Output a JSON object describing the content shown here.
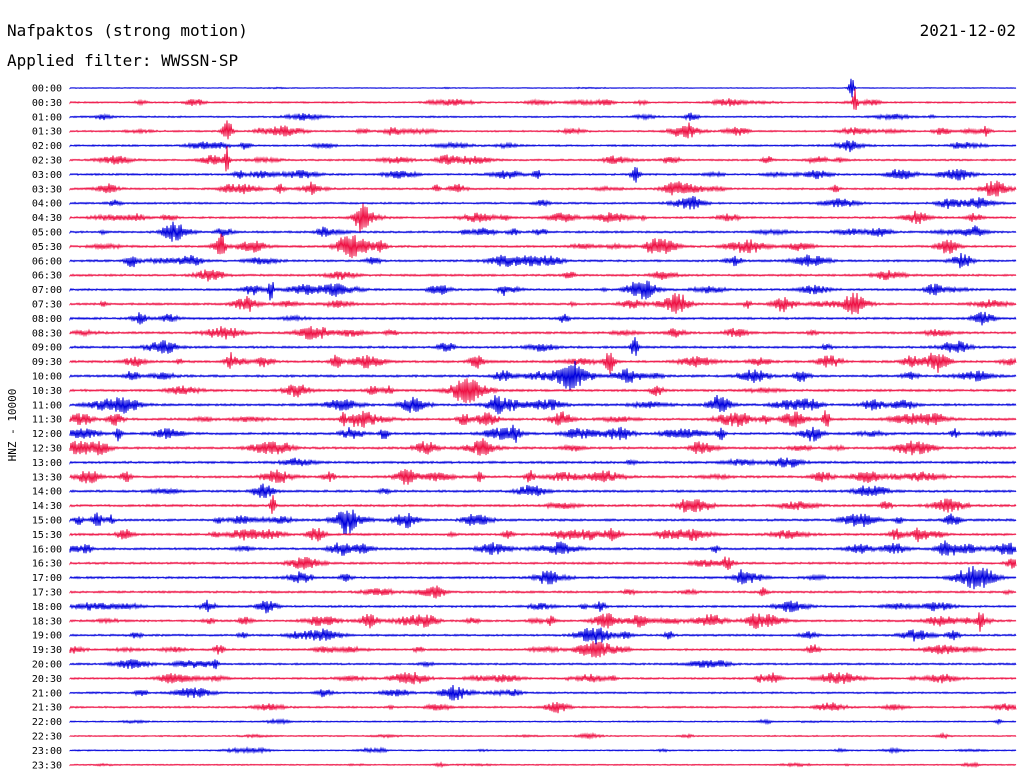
{
  "header": {
    "station": "Nafpaktos (strong motion)",
    "date": "2021-12-02",
    "filter": "Applied filter: WWSSN-SP"
  },
  "chart_data": {
    "type": "line",
    "title": "Nafpaktos (strong motion)",
    "subtitle": "Applied filter: WWSSN-SP",
    "date": "2021-12-02",
    "ylabel": "HNZ - 10000",
    "rows": [
      "00:00",
      "00:30",
      "01:00",
      "01:30",
      "02:00",
      "02:30",
      "03:00",
      "03:30",
      "04:00",
      "04:30",
      "05:00",
      "05:30",
      "06:00",
      "06:30",
      "07:00",
      "07:30",
      "08:00",
      "08:30",
      "09:00",
      "09:30",
      "10:00",
      "10:30",
      "11:00",
      "11:30",
      "12:00",
      "12:30",
      "13:00",
      "13:30",
      "14:00",
      "14:30",
      "15:00",
      "15:30",
      "16:00",
      "16:30",
      "17:00",
      "17:30",
      "18:00",
      "18:30",
      "19:00",
      "19:30",
      "20:00",
      "20:30",
      "21:00",
      "21:30",
      "22:00",
      "22:30",
      "23:00",
      "23:30"
    ],
    "series_colors": [
      "#0000dd",
      "#ee1144"
    ],
    "grid": false,
    "legend": "none"
  }
}
